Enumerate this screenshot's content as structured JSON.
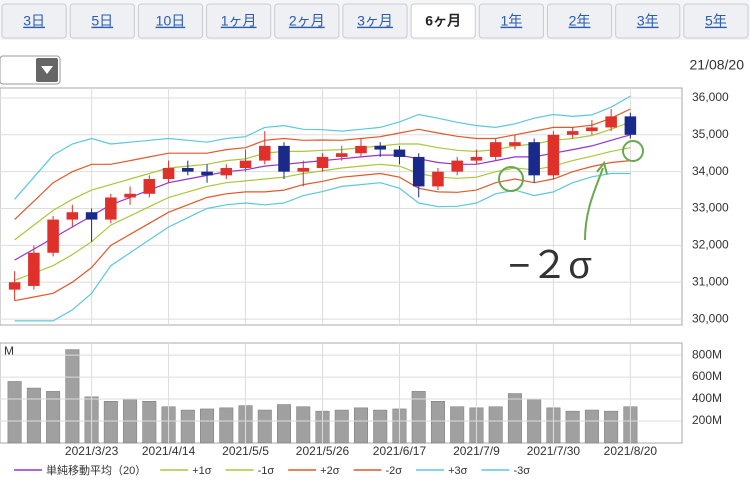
{
  "tabs": [
    {
      "label": "3日"
    },
    {
      "label": "5日"
    },
    {
      "label": "10日"
    },
    {
      "label": "1ヶ月"
    },
    {
      "label": "2ヶ月"
    },
    {
      "label": "3ヶ月"
    },
    {
      "label": "6ヶ月",
      "selected": true
    },
    {
      "label": "1年"
    },
    {
      "label": "2年"
    },
    {
      "label": "3年"
    },
    {
      "label": "5年"
    }
  ],
  "date": "21/08/20",
  "chart_data": [
    {
      "type": "candlestick",
      "annotation": "−２σ",
      "annotation_color": "#6aa84f",
      "up_color": "#e0302a",
      "down_color": "#1a2a8a",
      "grid": true,
      "ylim": [
        29840,
        36270
      ],
      "yticks": [
        {
          "value": 30000,
          "label": "30,000"
        },
        {
          "value": 31000,
          "label": "31,000"
        },
        {
          "value": 32000,
          "label": "32,000"
        },
        {
          "value": 33000,
          "label": "33,000"
        },
        {
          "value": 34000,
          "label": "34,000"
        },
        {
          "value": 35000,
          "label": "35,000"
        },
        {
          "value": 36000,
          "label": "36,000"
        }
      ],
      "open": [
        30800,
        30900,
        31800,
        32700,
        32900,
        32700,
        33300,
        33400,
        33800,
        34100,
        34000,
        33900,
        34100,
        34300,
        34700,
        34000,
        34100,
        34400,
        34500,
        34700,
        34600,
        34400,
        33600,
        34000,
        34300,
        34400,
        34700,
        34800,
        33900,
        35000,
        35100,
        35200,
        35500
      ],
      "high": [
        31300,
        32000,
        32800,
        33100,
        33000,
        33400,
        33600,
        33900,
        34300,
        34300,
        34200,
        34200,
        34600,
        35100,
        34800,
        34300,
        34500,
        34700,
        34900,
        34800,
        34700,
        34500,
        34100,
        34400,
        34600,
        34900,
        35000,
        34900,
        35100,
        35200,
        35400,
        35700,
        35600
      ],
      "low": [
        30500,
        30800,
        31700,
        32500,
        32100,
        32600,
        33100,
        33300,
        33700,
        33900,
        33700,
        33800,
        34000,
        34200,
        33800,
        33600,
        34000,
        34300,
        34400,
        34400,
        34200,
        33300,
        33500,
        33900,
        34200,
        34300,
        34600,
        33700,
        33800,
        34900,
        35000,
        35100,
        34900
      ],
      "close": [
        31000,
        31800,
        32700,
        32900,
        32700,
        33300,
        33400,
        33800,
        34100,
        34000,
        33900,
        34100,
        34300,
        34700,
        34000,
        34100,
        34400,
        34500,
        34700,
        34600,
        34400,
        33600,
        34000,
        34300,
        34400,
        34800,
        34800,
        33900,
        35000,
        35100,
        35200,
        35500,
        35000
      ],
      "series": [
        {
          "name": "単純移動平均（20）",
          "color": "#9933cc",
          "values": [
            31600,
            31900,
            32200,
            32500,
            32800,
            33100,
            33300,
            33500,
            33700,
            33800,
            33900,
            34000,
            34050,
            34150,
            34200,
            34250,
            34300,
            34350,
            34400,
            34450,
            34450,
            34350,
            34250,
            34200,
            34200,
            34300,
            34400,
            34400,
            34500,
            34600,
            34700,
            34850,
            35000
          ]
        },
        {
          "name": "+1σ",
          "color": "#a8c83a",
          "values": [
            32150,
            32550,
            32950,
            33250,
            33500,
            33650,
            33800,
            33950,
            34100,
            34150,
            34200,
            34300,
            34350,
            34500,
            34550,
            34550,
            34580,
            34600,
            34650,
            34700,
            34750,
            34750,
            34650,
            34580,
            34550,
            34600,
            34700,
            34750,
            34850,
            34900,
            34980,
            35150,
            35350
          ]
        },
        {
          "name": "-1σ",
          "color": "#a8c83a",
          "values": [
            31050,
            31250,
            31450,
            31750,
            32100,
            32550,
            32800,
            33050,
            33300,
            33450,
            33600,
            33700,
            33750,
            33800,
            33850,
            33950,
            34020,
            34100,
            34150,
            34200,
            34150,
            33950,
            33850,
            33820,
            33850,
            34000,
            34100,
            34050,
            34150,
            34300,
            34420,
            34550,
            34650
          ]
        },
        {
          "name": "+2σ",
          "color": "#e05a2a",
          "values": [
            32700,
            33200,
            33700,
            34000,
            34200,
            34200,
            34300,
            34400,
            34500,
            34500,
            34500,
            34600,
            34650,
            34850,
            34900,
            34850,
            34860,
            34850,
            34900,
            34950,
            35050,
            35150,
            35050,
            34960,
            34900,
            34900,
            35000,
            35100,
            35200,
            35200,
            35260,
            35450,
            35700
          ]
        },
        {
          "name": "-2σ",
          "color": "#e05a2a",
          "values": [
            30500,
            30600,
            30700,
            31000,
            31400,
            32000,
            32300,
            32600,
            32900,
            33100,
            33300,
            33400,
            33450,
            33450,
            33500,
            33650,
            33740,
            33850,
            33900,
            33950,
            33850,
            33550,
            33450,
            33440,
            33500,
            33700,
            33800,
            33700,
            33800,
            34000,
            34140,
            34250,
            34300
          ]
        },
        {
          "name": "+3σ",
          "color": "#5cc8d8",
          "values": [
            33250,
            33850,
            34450,
            34750,
            34900,
            34750,
            34800,
            34850,
            34900,
            34850,
            34800,
            34900,
            34950,
            35200,
            35250,
            35150,
            35140,
            35100,
            35150,
            35200,
            35350,
            35550,
            35450,
            35340,
            35250,
            35200,
            35300,
            35450,
            35550,
            35500,
            35540,
            35750,
            36050
          ]
        },
        {
          "name": "-3σ",
          "color": "#5cc8d8",
          "values": [
            29950,
            29950,
            29950,
            30250,
            30700,
            31450,
            31800,
            32150,
            32500,
            32750,
            33000,
            33100,
            33150,
            33100,
            33150,
            33350,
            33460,
            33600,
            33650,
            33700,
            33550,
            33150,
            33050,
            33060,
            33150,
            33400,
            33500,
            33350,
            33450,
            33700,
            33860,
            33950,
            33950
          ]
        }
      ]
    },
    {
      "type": "bar",
      "unit": "M",
      "color": "#a0a0a0",
      "grid": true,
      "categories": [
        null,
        null,
        null,
        null,
        "2021/3/23",
        null,
        null,
        null,
        "2021/4/14",
        null,
        null,
        null,
        "2021/5/5",
        null,
        null,
        null,
        "2021/5/26",
        null,
        null,
        null,
        "2021/6/17",
        null,
        null,
        null,
        "2021/7/9",
        null,
        null,
        null,
        "2021/7/30",
        null,
        null,
        null,
        "2021/8/20"
      ],
      "values": [
        560,
        500,
        470,
        850,
        420,
        380,
        400,
        380,
        330,
        300,
        310,
        320,
        340,
        300,
        350,
        330,
        290,
        300,
        320,
        300,
        310,
        470,
        380,
        330,
        320,
        330,
        450,
        400,
        320,
        290,
        300,
        290,
        330
      ],
      "ylim": [
        0,
        910
      ],
      "yticks": [
        {
          "value": 200,
          "label": "200M"
        },
        {
          "value": 400,
          "label": "400M"
        },
        {
          "value": 600,
          "label": "600M"
        },
        {
          "value": 800,
          "label": "800M"
        }
      ]
    }
  ]
}
